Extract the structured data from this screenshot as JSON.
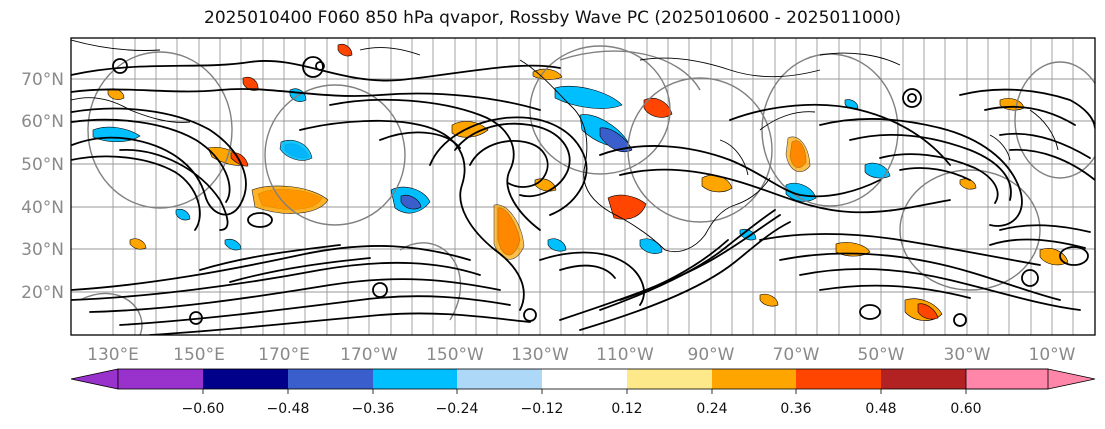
{
  "title": "2025010400 F060 850 hPa qvapor, Rossby Wave PC (2025010600 - 2025011000)",
  "lat_labels": [
    "70°N",
    "60°N",
    "50°N",
    "40°N",
    "30°N",
    "20°N"
  ],
  "lon_labels": [
    "130°E",
    "150°E",
    "170°E",
    "170°W",
    "150°W",
    "130°W",
    "110°W",
    "90°W",
    "70°W",
    "50°W",
    "30°W",
    "10°W"
  ],
  "colorbar": {
    "ticks": [
      "−0.60",
      "−0.48",
      "−0.36",
      "−0.24",
      "−0.12",
      "0.12",
      "0.24",
      "0.36",
      "0.48",
      "0.60"
    ],
    "colors": [
      "#9932cc",
      "#00008b",
      "#3a5fcd",
      "#00bfff",
      "#add8f7",
      "#ffffff",
      "#fee98a",
      "#ffa500",
      "#ff4500",
      "#b22222",
      "#ff86a8"
    ]
  },
  "colors": {
    "contour": "#000000",
    "pc_contour": "#808080",
    "grid": "#9a9a9a",
    "axis_label": "#8a8a8a"
  }
}
